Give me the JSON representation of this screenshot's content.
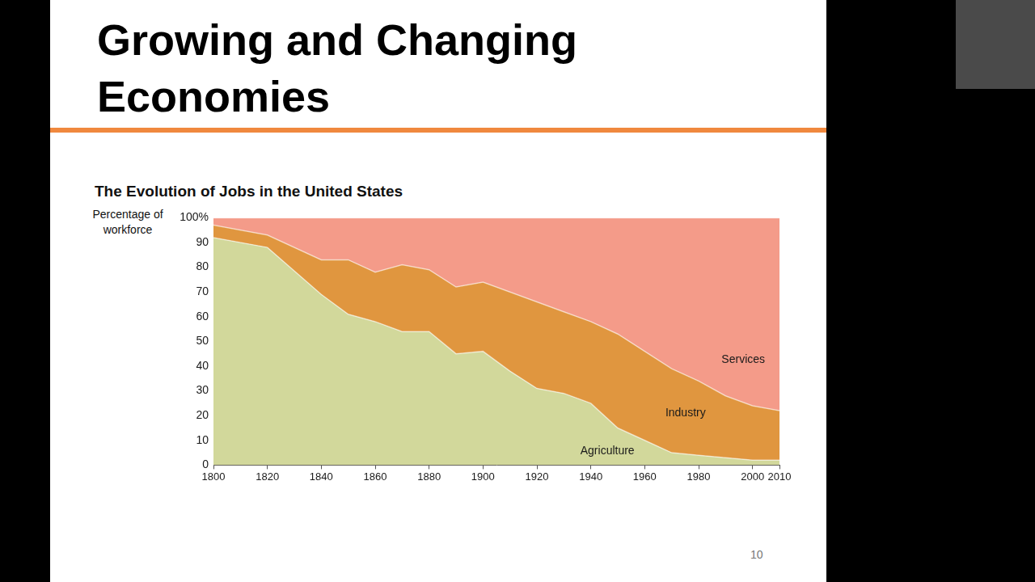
{
  "slide": {
    "title": "Growing and Changing Economies",
    "page_number": "10"
  },
  "chart_data": {
    "type": "area",
    "title": "The Evolution of Jobs in the United States",
    "y_label": "Percentage of workforce",
    "x": [
      1800,
      1820,
      1840,
      1850,
      1860,
      1870,
      1880,
      1890,
      1900,
      1910,
      1920,
      1930,
      1940,
      1950,
      1960,
      1970,
      1980,
      1990,
      2000,
      2010
    ],
    "series": [
      {
        "name": "Agriculture",
        "color": "#d2d89b",
        "values": [
          92,
          88,
          69,
          61,
          58,
          54,
          54,
          45,
          46,
          38,
          31,
          29,
          25,
          15,
          10,
          5,
          4,
          3,
          2,
          2
        ]
      },
      {
        "name": "Industry",
        "color": "#e0963f",
        "values": [
          5,
          5,
          14,
          22,
          20,
          27,
          25,
          27,
          28,
          32,
          35,
          33,
          33,
          38,
          36,
          34,
          30,
          25,
          22,
          20
        ]
      },
      {
        "name": "Services",
        "color": "#f49b89",
        "values": [
          3,
          7,
          17,
          17,
          22,
          19,
          21,
          28,
          26,
          30,
          34,
          38,
          42,
          47,
          54,
          61,
          66,
          72,
          76,
          78
        ]
      }
    ],
    "stacked": true,
    "grid": false,
    "xlim": [
      1800,
      2010
    ],
    "xticks": [
      1800,
      1820,
      1840,
      1860,
      1880,
      1900,
      1920,
      1940,
      1960,
      1980,
      2000,
      2010
    ],
    "ylim": [
      0,
      100
    ],
    "yticks": [
      0,
      10,
      20,
      30,
      40,
      50,
      60,
      70,
      80,
      90,
      {
        "value": 100,
        "label": "100%"
      }
    ]
  }
}
